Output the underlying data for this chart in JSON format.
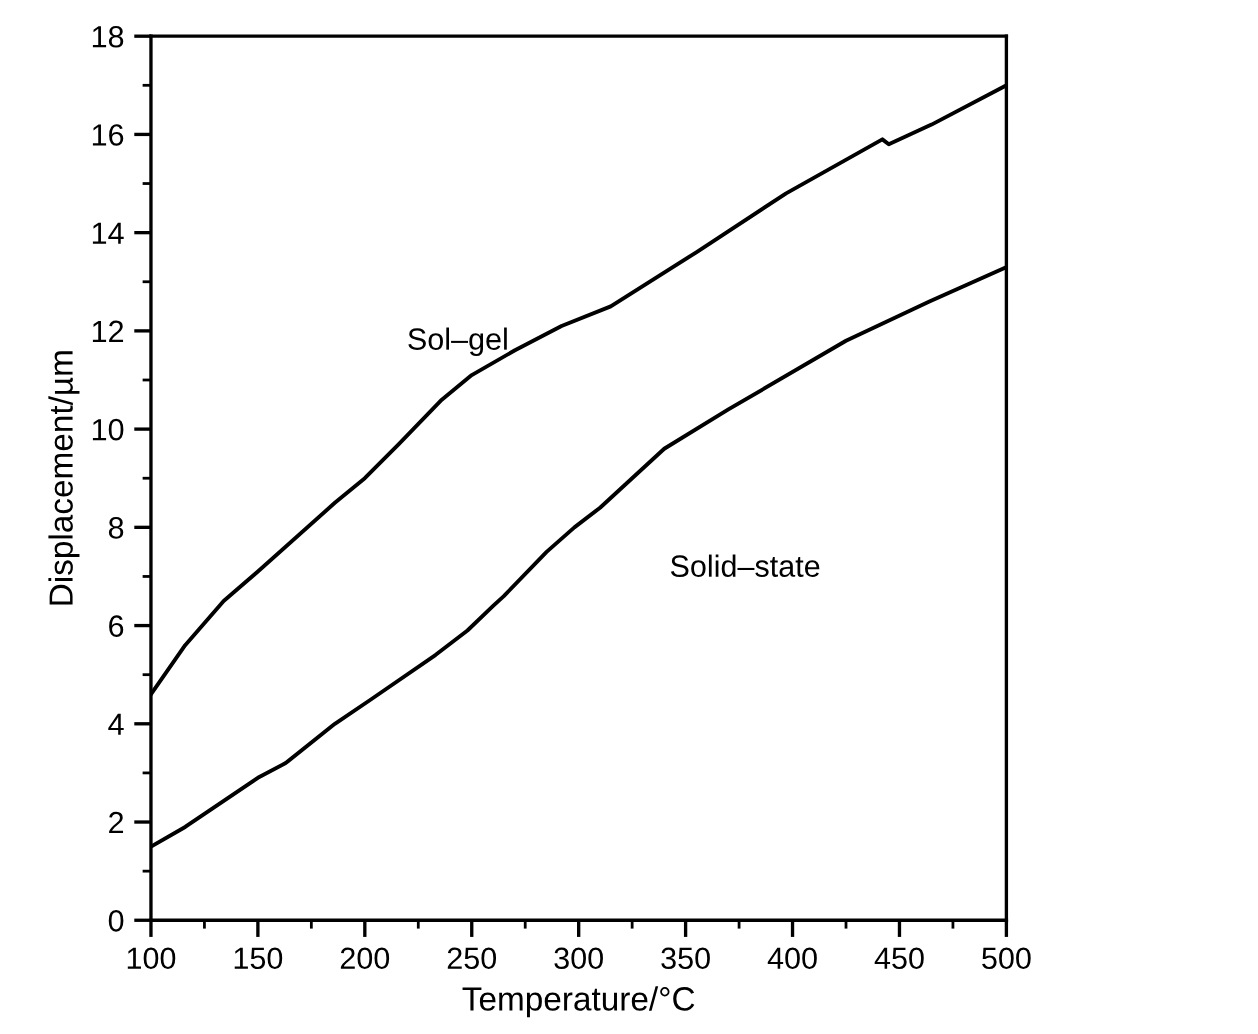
{
  "chart_data": {
    "type": "line",
    "xlabel": "Temperature/°C",
    "ylabel": "Displacement/µm",
    "xlim": [
      100,
      500
    ],
    "xticks": [
      100,
      150,
      200,
      250,
      300,
      350,
      400,
      450,
      500
    ],
    "ylim": [
      0,
      18
    ],
    "yticks": [
      0,
      2,
      4,
      6,
      8,
      10,
      12,
      14,
      16,
      18
    ],
    "grid": false,
    "legend": false,
    "marker": "none",
    "line_style": "solid",
    "series": [
      {
        "name": "Sol–gel",
        "color": "#000000",
        "x": [
          100,
          116,
          134,
          150,
          186,
          200,
          216,
          236,
          250,
          270,
          292,
          315,
          355,
          397,
          442,
          445,
          465,
          500
        ],
        "values": [
          4.6,
          5.6,
          6.5,
          7.1,
          8.5,
          9.0,
          9.7,
          10.6,
          11.1,
          11.6,
          12.1,
          12.5,
          13.6,
          14.8,
          15.9,
          15.8,
          16.2,
          17.0
        ]
      },
      {
        "name": "Solid–state",
        "color": "#000000",
        "x": [
          100,
          116,
          150,
          163,
          186,
          203,
          233,
          248,
          260,
          265,
          285,
          298,
          310,
          340,
          370,
          425,
          464,
          500
        ],
        "values": [
          1.5,
          1.9,
          2.9,
          3.2,
          4.0,
          4.5,
          5.4,
          5.9,
          6.4,
          6.6,
          7.5,
          8.0,
          8.4,
          9.6,
          10.4,
          11.8,
          12.6,
          13.3
        ]
      }
    ]
  }
}
